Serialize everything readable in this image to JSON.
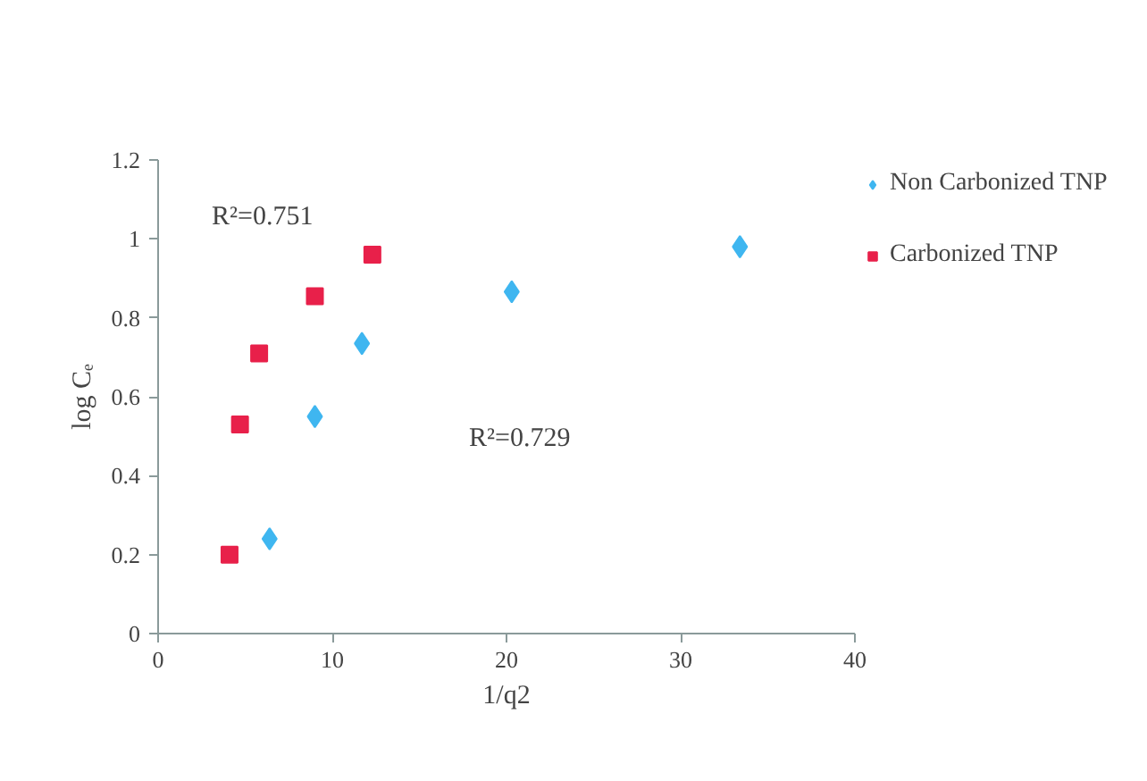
{
  "chart_data": {
    "type": "scatter",
    "xlabel": "1/q2",
    "ylabel": "log Cₑ",
    "xlim": [
      0,
      40
    ],
    "xticks": [
      0,
      10,
      20,
      30,
      40
    ],
    "ylim": [
      0,
      1.2
    ],
    "yticks": [
      0,
      {
        "value": 0.2,
        "label": "0.2"
      },
      {
        "value": 0.4,
        "label": "0.4"
      },
      {
        "value": 0.6,
        "label": "0.6"
      },
      {
        "value": 0.8,
        "label": "0.8"
      },
      1,
      {
        "value": 1.2,
        "label": "1.2"
      }
    ],
    "grid": false,
    "legend": "top right",
    "series": [
      {
        "name": "Non Carbonized TNP",
        "color": "#3fb6f0",
        "marker": "diamond",
        "x": [
          6.4,
          9.0,
          11.7,
          20.3,
          33.4
        ],
        "values": [
          0.24,
          0.55,
          0.735,
          0.866,
          0.98
        ]
      },
      {
        "name": "Carbonized TNP",
        "color": "#e8204a",
        "marker": "square",
        "x": [
          4.1,
          4.7,
          5.8,
          9.0,
          12.3
        ],
        "values": [
          0.2,
          0.53,
          0.71,
          0.855,
          0.96
        ]
      }
    ],
    "annotations": [
      "R²=0.751",
      "R²=0.729"
    ]
  }
}
